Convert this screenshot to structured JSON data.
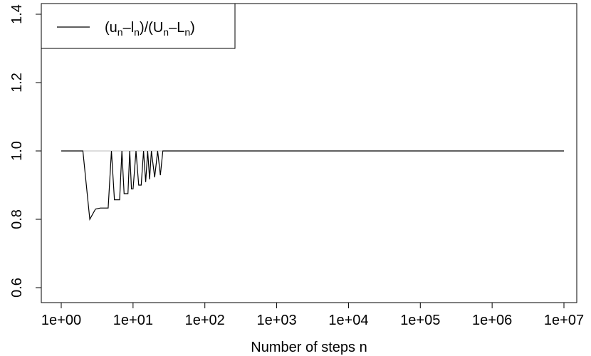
{
  "chart_data": {
    "type": "line",
    "xlabel": "Number of steps n",
    "ylabel": "",
    "x_scale": "log10",
    "xlim": [
      1,
      10000000
    ],
    "ylim": [
      0.6,
      1.4
    ],
    "x_ticks": [
      1,
      10,
      100,
      1000,
      10000,
      100000,
      1000000,
      10000000
    ],
    "x_tick_labels": [
      "1e+00",
      "1e+01",
      "1e+02",
      "1e+03",
      "1e+04",
      "1e+05",
      "1e+06",
      "1e+07"
    ],
    "y_ticks": [
      0.6,
      0.8,
      1.0,
      1.2,
      1.4
    ],
    "y_tick_labels": [
      "0.6",
      "0.8",
      "1.0",
      "1.2",
      "1.4"
    ],
    "reference_line": {
      "y": 1.0,
      "color": "#bbbbbb"
    },
    "legend": {
      "position": "top-left",
      "entries": [
        {
          "parts": [
            {
              "t": "(u"
            },
            {
              "t": "n",
              "sub": true
            },
            {
              "t": "–l"
            },
            {
              "t": "n",
              "sub": true
            },
            {
              "t": ")/(U"
            },
            {
              "t": "n",
              "sub": true
            },
            {
              "t": "–L"
            },
            {
              "t": "n",
              "sub": true
            },
            {
              "t": ")"
            }
          ]
        }
      ]
    },
    "series": [
      {
        "line_color": "#000000",
        "x": [
          1,
          1.5,
          2,
          2.5,
          3,
          3.5,
          4,
          4.5,
          5,
          5.5,
          6,
          6.5,
          7,
          7.5,
          8,
          8.5,
          9,
          9.5,
          10,
          11,
          12,
          13,
          14,
          15,
          16,
          17,
          18,
          20,
          22,
          24,
          26,
          28,
          30,
          32,
          35,
          38,
          40,
          45,
          50,
          55,
          60,
          65,
          70,
          80,
          90,
          100,
          110,
          120,
          130,
          140,
          150,
          170,
          200,
          250,
          300,
          400,
          500,
          700,
          1000,
          2000,
          3000,
          5000,
          10000,
          20000,
          50000,
          100000,
          200000,
          500000,
          1000000,
          2000000,
          5000000,
          10000000
        ],
        "y": [
          1.0,
          1.0,
          1.0,
          0.8,
          0.83,
          0.833,
          0.833,
          0.833,
          1.0,
          0.857,
          0.857,
          0.857,
          1.0,
          0.875,
          0.875,
          0.875,
          1.0,
          0.889,
          0.889,
          1.0,
          0.9,
          0.9,
          1.0,
          0.909,
          1.0,
          0.917,
          1.0,
          0.923,
          1.0,
          0.929,
          1.0,
          1.0,
          1.0,
          1.0,
          1.0,
          1.0,
          1.0,
          1.0,
          1.0,
          1.0,
          1.0,
          1.0,
          1.0,
          1.0,
          1.0,
          1.0,
          1.0,
          1.0,
          1.0,
          1.0,
          1.0,
          1.0,
          1.0,
          1.0,
          1.0,
          1.0,
          1.0,
          1.0,
          1.0,
          1.0,
          1.0,
          1.0,
          1.0,
          1.0,
          1.0,
          1.0,
          1.0,
          1.0,
          1.0,
          1.0,
          1.0,
          1.0
        ]
      }
    ]
  }
}
